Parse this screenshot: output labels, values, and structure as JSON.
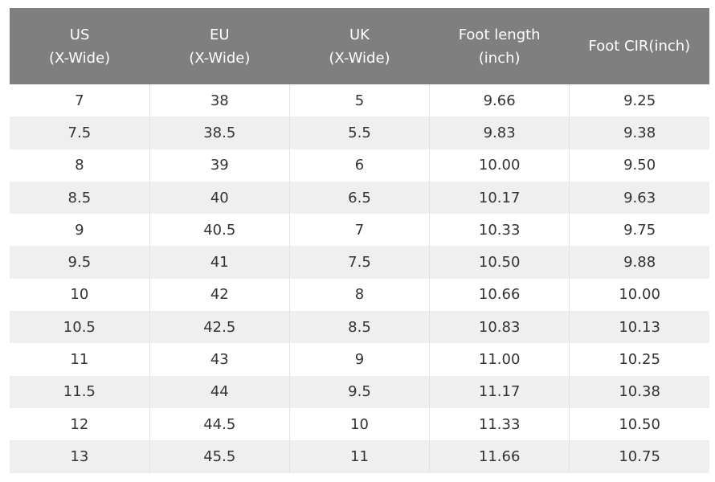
{
  "table": {
    "header": [
      [
        "US",
        "(X-Wide)"
      ],
      [
        "EU",
        "(X-Wide)"
      ],
      [
        "UK",
        "(X-Wide)"
      ],
      [
        "Foot length",
        "(inch)"
      ],
      [
        "Foot CIR(inch)"
      ]
    ],
    "rows": [
      [
        "7",
        "38",
        "5",
        "9.66",
        "9.25"
      ],
      [
        "7.5",
        "38.5",
        "5.5",
        "9.83",
        "9.38"
      ],
      [
        "8",
        "39",
        "6",
        "10.00",
        "9.50"
      ],
      [
        "8.5",
        "40",
        "6.5",
        "10.17",
        "9.63"
      ],
      [
        "9",
        "40.5",
        "7",
        "10.33",
        "9.75"
      ],
      [
        "9.5",
        "41",
        "7.5",
        "10.50",
        "9.88"
      ],
      [
        "10",
        "42",
        "8",
        "10.66",
        "10.00"
      ],
      [
        "10.5",
        "42.5",
        "8.5",
        "10.83",
        "10.13"
      ],
      [
        "11",
        "43",
        "9",
        "11.00",
        "10.25"
      ],
      [
        "11.5",
        "44",
        "9.5",
        "11.17",
        "10.38"
      ],
      [
        "12",
        "44.5",
        "10",
        "11.33",
        "10.50"
      ],
      [
        "13",
        "45.5",
        "11",
        "11.66",
        "10.75"
      ]
    ]
  }
}
